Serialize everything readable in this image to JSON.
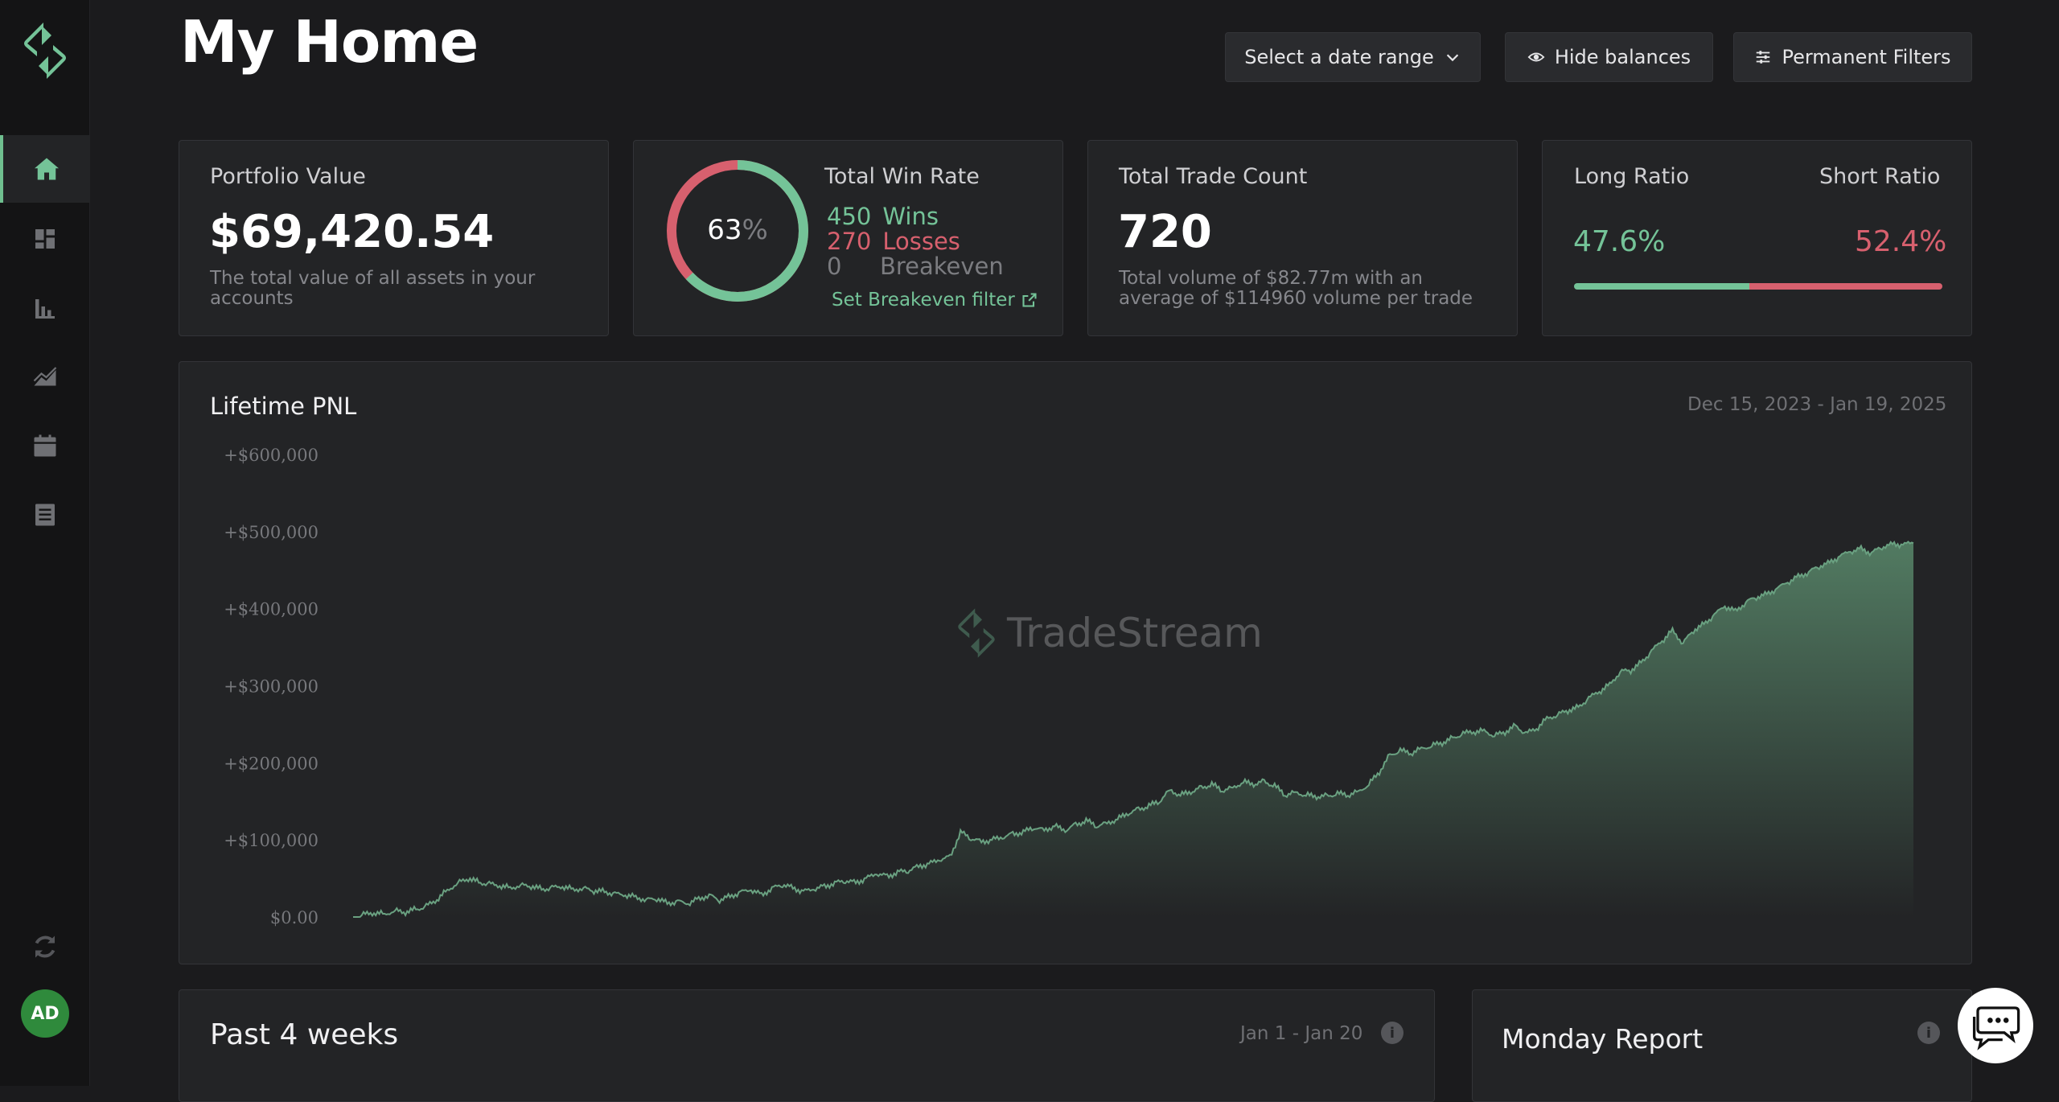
{
  "page": {
    "title": "My Home"
  },
  "header": {
    "date_range_label": "Select a date range",
    "hide_balances_label": "Hide balances",
    "permanent_filters_label": "Permanent Filters"
  },
  "portfolio": {
    "label": "Portfolio Value",
    "value": "$69,420.54",
    "description": "The total value of all assets in your accounts"
  },
  "win_rate": {
    "label": "Total Win Rate",
    "percent": "63",
    "percent_sign": "%",
    "percent_value": 0.63,
    "wins_count": "450",
    "wins_label": "Wins",
    "losses_count": "270",
    "losses_label": "Losses",
    "breakeven_count": "0",
    "breakeven_label": "Breakeven",
    "set_filter_label": "Set Breakeven filter"
  },
  "trade_count": {
    "label": "Total Trade Count",
    "value": "720",
    "description": "Total volume of $82.77m with an average of $114960 volume per trade"
  },
  "ratio": {
    "long_label": "Long Ratio",
    "short_label": "Short Ratio",
    "long_value": "47.6%",
    "short_value": "52.4%",
    "long_fraction": 0.476
  },
  "lifetime_pnl": {
    "title": "Lifetime PNL",
    "date_range": "Dec 15, 2023 - Jan 19, 2025",
    "watermark": "TradeStream"
  },
  "past_weeks": {
    "title": "Past 4 weeks",
    "date_range": "Jan 1 - Jan 20"
  },
  "monday_report": {
    "title": "Monday Report"
  },
  "user": {
    "initials": "AD"
  },
  "colors": {
    "accent": "#74c398",
    "loss": "#d7606e",
    "bg": "#1b1b1d",
    "card": "#232426"
  },
  "icons": [
    "home-icon",
    "dashboard-icon",
    "bar-chart-icon",
    "line-chart-icon",
    "calendar-icon",
    "document-icon",
    "refresh-icon",
    "eye-icon",
    "chevron-down-icon",
    "sliders-icon",
    "external-link-icon",
    "info-icon",
    "chat-icon"
  ],
  "chart_data": {
    "type": "area",
    "title": "Lifetime PNL",
    "ylim": [
      0,
      600000
    ],
    "yticks": [
      "+$600,000",
      "+$500,000",
      "+$400,000",
      "+$300,000",
      "+$200,000",
      "+$100,000",
      "$0.00"
    ],
    "x_range": [
      "Dec 15, 2023",
      "Jan 19, 2025"
    ],
    "series": [
      {
        "values": [
          0,
          3000,
          5000,
          4000,
          8000,
          6000,
          10000,
          14000,
          22000,
          35000,
          44000,
          50000,
          45000,
          43000,
          40000,
          38000,
          41000,
          40000,
          36000,
          38000,
          39000,
          36000,
          37000,
          34000,
          33000,
          30000,
          28000,
          26000,
          22000,
          24000,
          18000,
          20000,
          17000,
          24000,
          28000,
          22000,
          27000,
          32000,
          35000,
          29000,
          37000,
          42000,
          38000,
          33000,
          36000,
          40000,
          44000,
          47000,
          45000,
          50000,
          56000,
          53000,
          58000,
          60000,
          66000,
          69000,
          74000,
          78000,
          110000,
          102000,
          98000,
          100000,
          103000,
          108000,
          110000,
          116000,
          113000,
          118000,
          112000,
          120000,
          125000,
          118000,
          122000,
          127000,
          134000,
          140000,
          144000,
          150000,
          165000,
          158000,
          162000,
          168000,
          172000,
          164000,
          168000,
          175000,
          172000,
          176000,
          170000,
          158000,
          162000,
          158000,
          156000,
          157000,
          160000,
          158000,
          163000,
          172000,
          188000,
          210000,
          216000,
          212000,
          219000,
          222000,
          226000,
          232000,
          238000,
          240000,
          242000,
          235000,
          240000,
          248000,
          238000,
          244000,
          258000,
          262000,
          268000,
          272000,
          284000,
          292000,
          302000,
          318000,
          320000,
          330000,
          345000,
          358000,
          372000,
          355000,
          372000,
          380000,
          392000,
          403000,
          397000,
          408000,
          415000,
          419000,
          426000,
          434000,
          442000,
          447000,
          455000,
          460000,
          468000,
          474000,
          478000,
          472000,
          480000,
          484000,
          483000,
          485000
        ]
      }
    ]
  }
}
